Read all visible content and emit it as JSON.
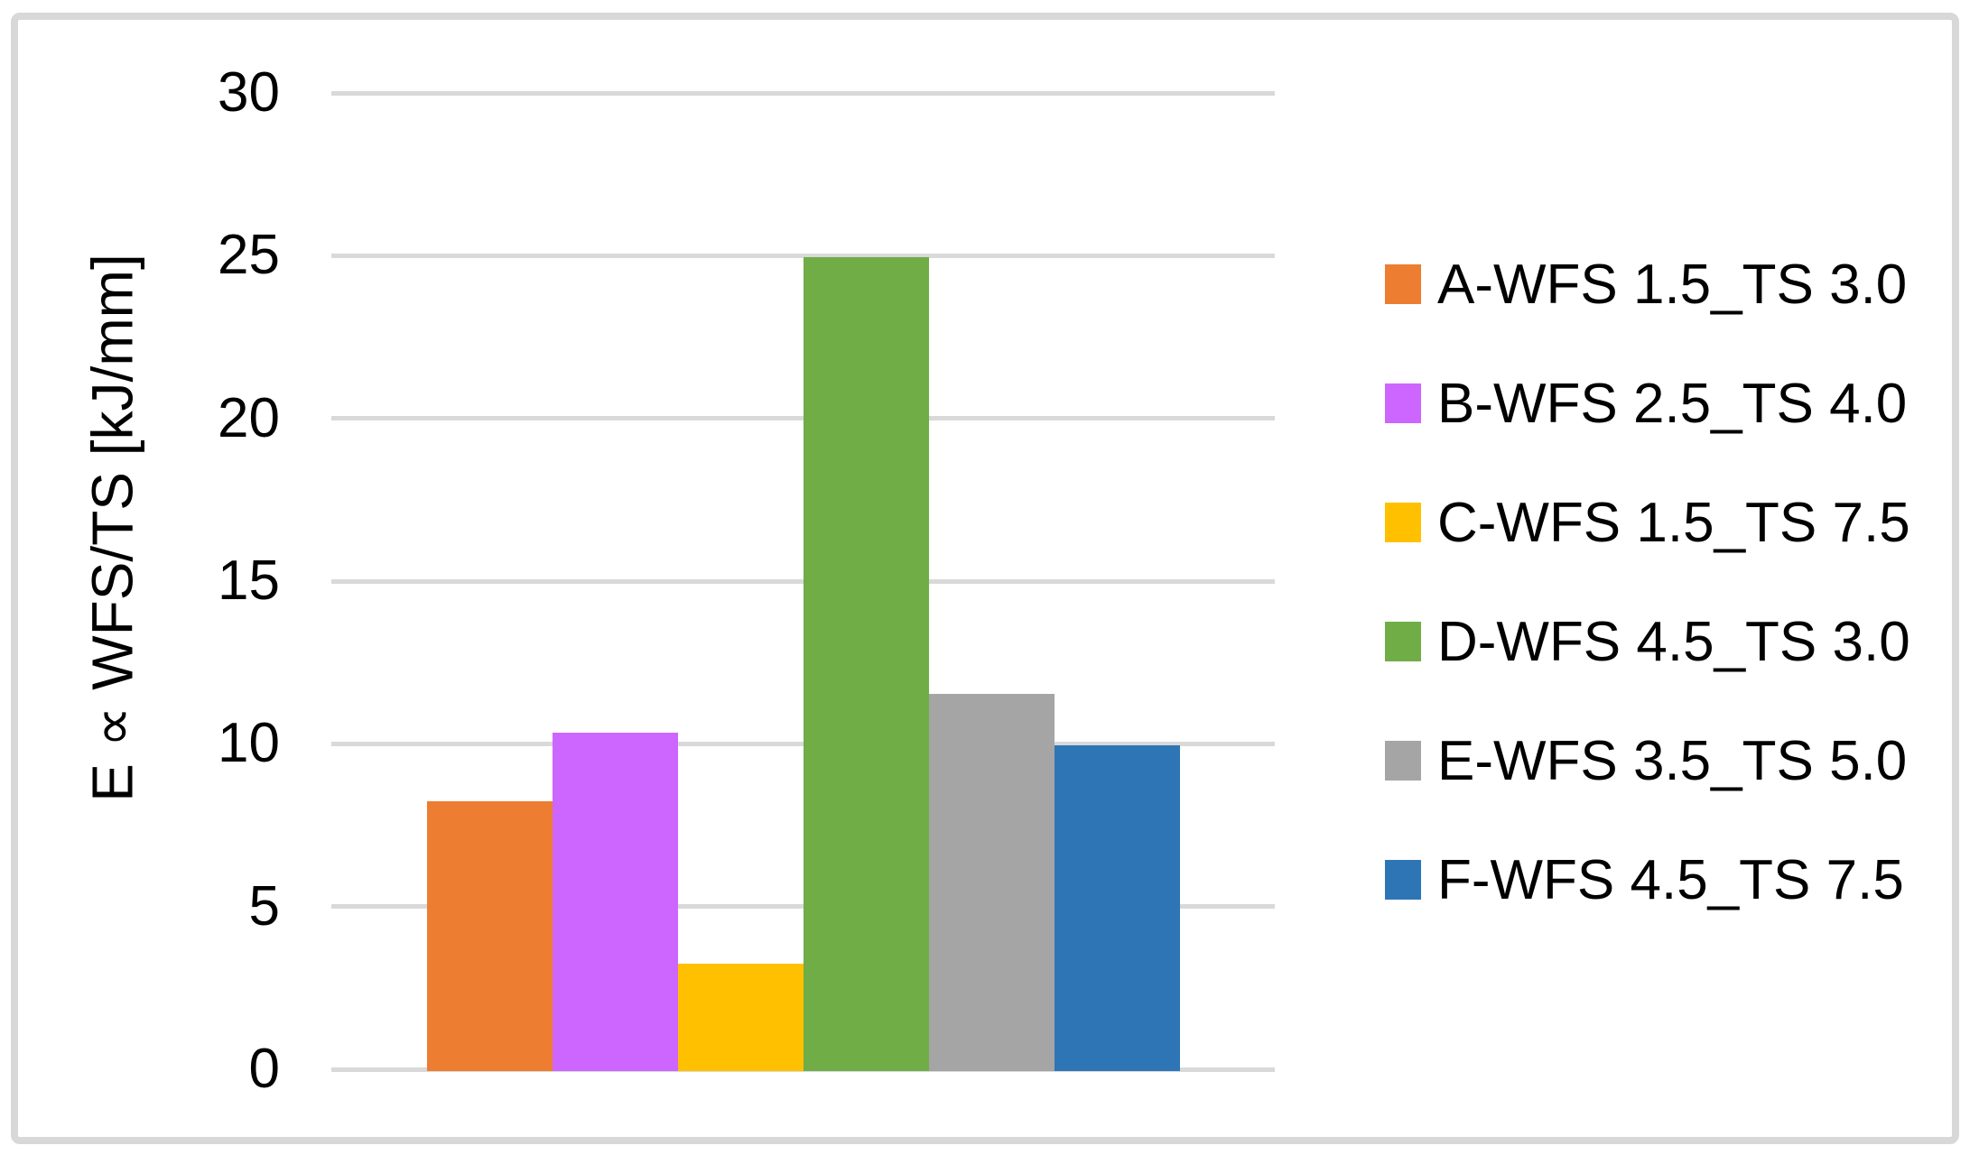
{
  "chart_data": {
    "type": "bar",
    "title": "",
    "xlabel": "",
    "ylabel": "E ∝ WFS/TS [kJ/mm]",
    "ylim": [
      0,
      30
    ],
    "ytick_step": 5,
    "yticks": [
      0,
      5,
      10,
      15,
      20,
      25,
      30
    ],
    "grid": true,
    "legend_position": "right",
    "background_color": "#FFFFFF",
    "gridline_color": "#D9D9D9",
    "frame_border_color": "#D8D8D8",
    "axis_text_color": "#000000",
    "categories": [
      "A-WFS 1.5_TS 3.0",
      "B-WFS 2.5_TS 4.0",
      "C-WFS 1.5_TS 7.5",
      "D-WFS 4.5_TS 3.0",
      "E-WFS 3.5_TS 5.0",
      "F-WFS 4.5_TS 7.5"
    ],
    "series": [
      {
        "name": "A-WFS 1.5_TS 3.0",
        "value": 8.3,
        "color": "#ED7D31"
      },
      {
        "name": "B-WFS 2.5_TS 4.0",
        "value": 10.4,
        "color": "#CC66FF"
      },
      {
        "name": "C-WFS 1.5_TS 7.5",
        "value": 3.3,
        "color": "#FFC000"
      },
      {
        "name": "D-WFS 4.5_TS 3.0",
        "value": 25.0,
        "color": "#70AD47"
      },
      {
        "name": "E-WFS 3.5_TS 5.0",
        "value": 11.6,
        "color": "#A5A5A5"
      },
      {
        "name": "F-WFS 4.5_TS 7.5",
        "value": 10.0,
        "color": "#2E75B6"
      }
    ]
  }
}
